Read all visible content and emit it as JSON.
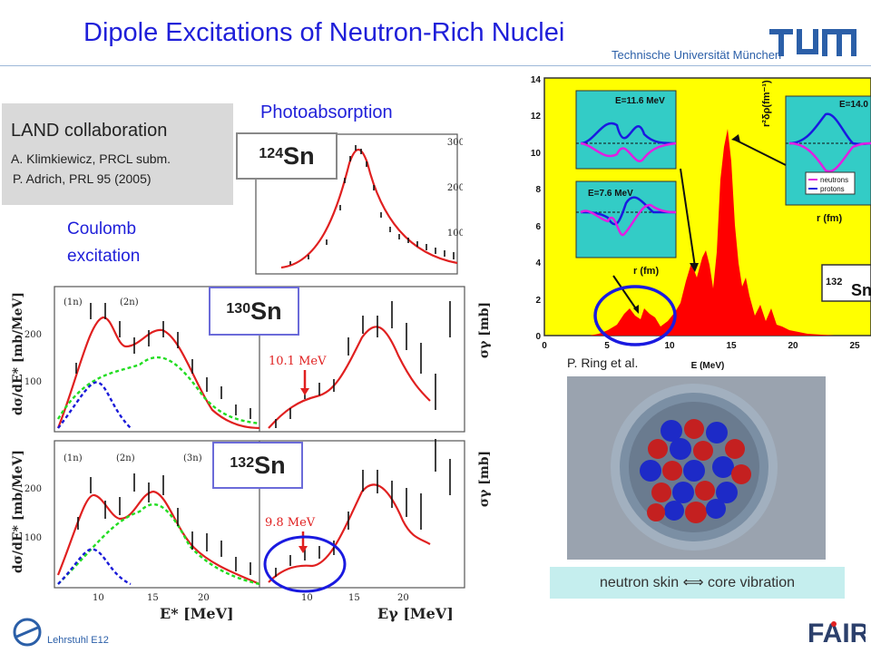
{
  "title": "Dipole Excitations of Neutron-Rich Nuclei",
  "logo": {
    "name": "tum-logo",
    "text": "TUM",
    "subtitle": "Technische Universität München"
  },
  "land": {
    "title": "LAND collaboration",
    "ref1": "A. Klimkiewicz, PRCL subm.",
    "ref2": "P. Adrich,   PRL 95 (2005)"
  },
  "labels": {
    "photoabsorption": "Photoabsorption",
    "coulomb_line1": "Coulomb",
    "coulomb_line2": "excitation"
  },
  "isotopes": {
    "sn124": {
      "mass": "124",
      "symbol": "Sn"
    },
    "sn130": {
      "mass": "130",
      "symbol": "Sn"
    },
    "sn132": {
      "mass": "132",
      "symbol": "Sn"
    }
  },
  "panels": {
    "top_right_ylabel": "σγ [mb]",
    "left_ylabel": "dσ/dE* [mb/MeV]",
    "energy_130": "10.1 MeV",
    "energy_132": "9.8 MeV",
    "xlabel_left": "E* [MeV]",
    "xlabel_right": "Eγ [MeV]",
    "neutron_markers": [
      "(1n)",
      "(2n)",
      "(3n)"
    ]
  },
  "ring_plot": {
    "xlabel": "E (MeV)",
    "yticks": [
      "0",
      "2",
      "4",
      "6",
      "8",
      "10",
      "12",
      "14"
    ],
    "xticks": [
      "0",
      "5",
      "10",
      "15",
      "20",
      "25"
    ],
    "inset1_label": "E=11.6 MeV",
    "inset2_label": "E=7.6 MeV",
    "inset3_label": "E=14.0",
    "inset_xlabel": "r (fm)",
    "inset_ylabel": "r²δρ(fm⁻¹)",
    "legend": [
      "neutrons",
      "protons"
    ],
    "isotope_mass": "132",
    "isotope_symbol": "Sn",
    "colors": {
      "background": "#ffff00",
      "fill": "#ff0000",
      "inset_bg": "#33ccc6",
      "neutrons": "#e21ee2",
      "protons": "#1a1ae0"
    }
  },
  "ring_credit": "P. Ring et al.",
  "caption": "neutron skin ⟺ core vibration",
  "footer": {
    "lehrstuhl": "Lehrstuhl E12",
    "fair": "FAIR"
  }
}
